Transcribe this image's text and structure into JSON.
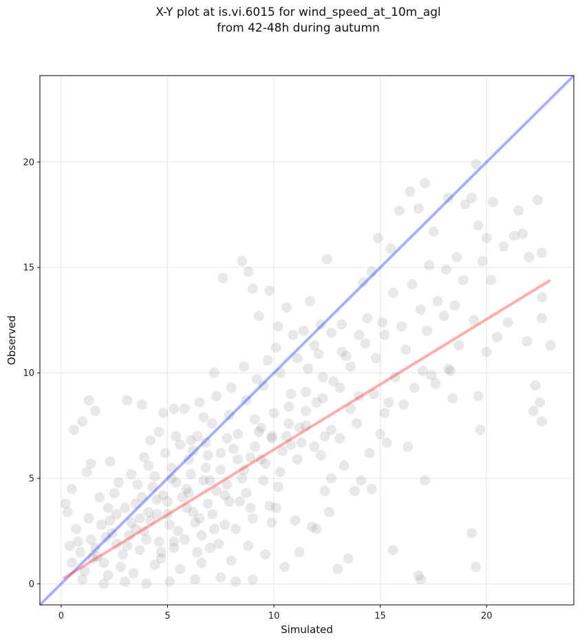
{
  "chart_data": {
    "type": "scatter",
    "title": "X-Y plot at is.vi.6015 for wind_speed_at_10m_agl",
    "subtitle": "from 42-48h during autumn",
    "xlabel": "Simulated",
    "ylabel": "Observed",
    "xlim": [
      -1,
      24.1
    ],
    "ylim": [
      -1,
      24.1
    ],
    "x_ticks": [
      0,
      5,
      10,
      15,
      20
    ],
    "y_ticks": [
      0,
      5,
      10,
      15,
      20
    ],
    "grid": true,
    "marker_color": "#808080",
    "identity_line": {
      "color": "#3333ff",
      "from": [
        -1,
        -1
      ],
      "to": [
        24.1,
        24.1
      ]
    },
    "fit_line": {
      "color": "#ff3333",
      "from": [
        0.1,
        0.25
      ],
      "to": [
        23,
        14.4
      ]
    },
    "points": [
      [
        0.2,
        3.8
      ],
      [
        0.3,
        3.4
      ],
      [
        0.5,
        4.5
      ],
      [
        0.6,
        7.3
      ],
      [
        1.0,
        7.7
      ],
      [
        1.3,
        8.7
      ],
      [
        1.6,
        8.2
      ],
      [
        1.2,
        5.3
      ],
      [
        1.4,
        5.7
      ],
      [
        2.3,
        5.8
      ],
      [
        3.1,
        8.7
      ],
      [
        3.8,
        8.5
      ],
      [
        4.2,
        6.8
      ],
      [
        4.8,
        8.1
      ],
      [
        5.3,
        8.3
      ],
      [
        5.8,
        8.3
      ],
      [
        6.5,
        8.6
      ],
      [
        7.2,
        10.0
      ],
      [
        7.6,
        14.5
      ],
      [
        8.5,
        15.3
      ],
      [
        8.8,
        14.8
      ],
      [
        9.0,
        14.0
      ],
      [
        9.3,
        12.7
      ],
      [
        9.8,
        13.9
      ],
      [
        10.2,
        12.2
      ],
      [
        10.6,
        13.1
      ],
      [
        11.7,
        13.4
      ],
      [
        12.2,
        12.3
      ],
      [
        12.5,
        15.4
      ],
      [
        13.2,
        12.3
      ],
      [
        14.0,
        11.8
      ],
      [
        14.2,
        14.3
      ],
      [
        14.6,
        14.8
      ],
      [
        14.9,
        16.4
      ],
      [
        15.5,
        15.9
      ],
      [
        15.9,
        17.7
      ],
      [
        16.4,
        18.6
      ],
      [
        16.8,
        17.8
      ],
      [
        17.1,
        19.0
      ],
      [
        17.5,
        16.7
      ],
      [
        18.2,
        18.3
      ],
      [
        18.6,
        15.5
      ],
      [
        19.0,
        18.0
      ],
      [
        19.3,
        18.3
      ],
      [
        19.5,
        19.9
      ],
      [
        19.6,
        17.0
      ],
      [
        20.0,
        16.4
      ],
      [
        20.3,
        18.1
      ],
      [
        20.8,
        16.0
      ],
      [
        21.3,
        16.5
      ],
      [
        21.5,
        17.7
      ],
      [
        21.7,
        16.6
      ],
      [
        22.0,
        15.5
      ],
      [
        22.4,
        18.2
      ],
      [
        22.6,
        15.7
      ],
      [
        22.6,
        13.6
      ],
      [
        23.0,
        11.3
      ],
      [
        22.6,
        12.6
      ],
      [
        22.3,
        9.4
      ],
      [
        22.5,
        8.6
      ],
      [
        22.6,
        7.7
      ],
      [
        22.2,
        8.2
      ],
      [
        19.3,
        2.4
      ],
      [
        19.5,
        0.8
      ],
      [
        16.8,
        0.4
      ],
      [
        16.9,
        0.2
      ],
      [
        15.6,
        1.6
      ],
      [
        17.1,
        4.9
      ],
      [
        19.7,
        7.3
      ],
      [
        19.6,
        8.9
      ],
      [
        20.0,
        11.0
      ],
      [
        20.5,
        11.7
      ],
      [
        21.0,
        12.4
      ],
      [
        21.9,
        11.5
      ],
      [
        18.4,
        8.8
      ],
      [
        18.2,
        10.2
      ],
      [
        17.0,
        10.1
      ],
      [
        15.7,
        9.8
      ],
      [
        15.2,
        8.1
      ],
      [
        14.7,
        9.0
      ],
      [
        13.6,
        8.3
      ],
      [
        13.1,
        6.9
      ],
      [
        12.7,
        5.0
      ],
      [
        12.4,
        4.4
      ],
      [
        12.2,
        6.1
      ],
      [
        11.5,
        7.5
      ],
      [
        10.8,
        6.6
      ],
      [
        10.2,
        4.6
      ],
      [
        9.9,
        2.9
      ],
      [
        11.2,
        1.5
      ],
      [
        13.0,
        0.7
      ],
      [
        13.5,
        1.2
      ],
      [
        12.0,
        2.6
      ],
      [
        10.5,
        0.8
      ],
      [
        9.0,
        0.2
      ],
      [
        8.2,
        0.1
      ],
      [
        7.5,
        0.3
      ],
      [
        6.3,
        0.2
      ],
      [
        5.1,
        0.1
      ],
      [
        4.0,
        0.0
      ],
      [
        3.0,
        0.1
      ],
      [
        2.0,
        0.0
      ],
      [
        1.0,
        0.2
      ],
      [
        0.5,
        1.0
      ],
      [
        0.8,
        2.0
      ],
      [
        1.5,
        1.2
      ],
      [
        2.1,
        2.2
      ],
      [
        2.6,
        3.3
      ],
      [
        3.1,
        1.8
      ],
      [
        3.5,
        3.8
      ],
      [
        3.9,
        2.5
      ],
      [
        4.3,
        4.6
      ],
      [
        4.7,
        1.2
      ],
      [
        5.0,
        3.3
      ],
      [
        5.4,
        4.8
      ],
      [
        5.8,
        2.1
      ],
      [
        6.1,
        5.2
      ],
      [
        6.5,
        3.1
      ],
      [
        6.9,
        6.1
      ],
      [
        7.3,
        4.4
      ],
      [
        7.7,
        2.8
      ],
      [
        8.1,
        6.4
      ],
      [
        8.5,
        5.0
      ],
      [
        8.9,
        3.6
      ],
      [
        9.3,
        7.2
      ],
      [
        9.6,
        5.7
      ],
      [
        10.0,
        8.1
      ],
      [
        10.4,
        6.3
      ],
      [
        10.8,
        9.0
      ],
      [
        11.2,
        7.4
      ],
      [
        11.6,
        10.2
      ],
      [
        12.0,
        8.6
      ],
      [
        12.4,
        7.0
      ],
      [
        12.8,
        9.6
      ],
      [
        13.2,
        11.0
      ],
      [
        13.6,
        10.3
      ],
      [
        14.0,
        8.9
      ],
      [
        14.4,
        12.6
      ],
      [
        14.8,
        10.7
      ],
      [
        15.2,
        11.8
      ],
      [
        15.6,
        13.8
      ],
      [
        16.0,
        12.2
      ],
      [
        16.5,
        14.2
      ],
      [
        16.9,
        13.0
      ],
      [
        17.3,
        15.1
      ],
      [
        17.7,
        13.4
      ],
      [
        18.1,
        14.9
      ],
      [
        18.5,
        13.2
      ],
      [
        18.9,
        14.4
      ],
      [
        19.4,
        12.5
      ],
      [
        19.8,
        15.3
      ],
      [
        20.2,
        14.4
      ],
      [
        1.8,
        4.1
      ],
      [
        2.2,
        3.6
      ],
      [
        2.7,
        4.8
      ],
      [
        3.3,
        5.2
      ],
      [
        3.7,
        3.1
      ],
      [
        4.1,
        5.6
      ],
      [
        4.5,
        4.0
      ],
      [
        4.9,
        6.2
      ],
      [
        5.2,
        5.0
      ],
      [
        5.6,
        6.6
      ],
      [
        6.0,
        4.3
      ],
      [
        6.4,
        7.0
      ],
      [
        6.8,
        5.5
      ],
      [
        7.1,
        7.6
      ],
      [
        7.5,
        6.2
      ],
      [
        7.9,
        8.0
      ],
      [
        8.3,
        7.1
      ],
      [
        8.7,
        8.7
      ],
      [
        9.1,
        7.8
      ],
      [
        9.5,
        9.4
      ],
      [
        9.9,
        7.0
      ],
      [
        10.3,
        10.0
      ],
      [
        10.7,
        8.4
      ],
      [
        11.1,
        10.7
      ],
      [
        11.5,
        9.1
      ],
      [
        11.9,
        11.3
      ],
      [
        12.3,
        9.8
      ],
      [
        12.7,
        11.9
      ],
      [
        1.1,
        0.6
      ],
      [
        1.6,
        1.7
      ],
      [
        2.0,
        1.0
      ],
      [
        2.4,
        2.4
      ],
      [
        2.9,
        1.4
      ],
      [
        3.3,
        2.9
      ],
      [
        3.7,
        1.6
      ],
      [
        4.1,
        3.4
      ],
      [
        4.6,
        2.0
      ],
      [
        5.0,
        3.9
      ],
      [
        5.5,
        2.5
      ],
      [
        5.9,
        4.5
      ],
      [
        6.3,
        2.9
      ],
      [
        6.7,
        4.9
      ],
      [
        7.1,
        3.3
      ],
      [
        7.5,
        5.4
      ],
      [
        7.9,
        3.9
      ],
      [
        8.3,
        5.9
      ],
      [
        8.7,
        4.3
      ],
      [
        9.1,
        6.5
      ],
      [
        9.5,
        4.9
      ],
      [
        9.9,
        6.9
      ],
      [
        10.3,
        5.3
      ],
      [
        10.7,
        7.6
      ],
      [
        11.1,
        5.9
      ],
      [
        11.5,
        8.2
      ],
      [
        11.9,
        6.5
      ],
      [
        12.3,
        8.8
      ],
      [
        12.7,
        7.3
      ],
      [
        13.1,
        9.3
      ],
      [
        0.4,
        1.8
      ],
      [
        0.7,
        2.6
      ],
      [
        1.3,
        3.1
      ],
      [
        1.9,
        2.8
      ],
      [
        2.5,
        4.3
      ],
      [
        3.0,
        3.6
      ],
      [
        3.6,
        4.7
      ],
      [
        4.2,
        3.0
      ],
      [
        4.8,
        4.2
      ],
      [
        5.3,
        2.0
      ],
      [
        5.9,
        3.6
      ],
      [
        6.4,
        1.5
      ],
      [
        6.9,
        3.8
      ],
      [
        7.4,
        1.9
      ],
      [
        7.8,
        4.7
      ],
      [
        8.2,
        2.6
      ],
      [
        8.6,
        5.4
      ],
      [
        9.0,
        3.1
      ],
      [
        9.4,
        5.9
      ],
      [
        9.8,
        3.7
      ],
      [
        2.2,
        0.4
      ],
      [
        2.8,
        0.8
      ],
      [
        3.4,
        0.5
      ],
      [
        4.4,
        0.9
      ],
      [
        5.6,
        0.7
      ],
      [
        6.6,
        1.0
      ],
      [
        7.0,
        1.7
      ],
      [
        8.0,
        1.1
      ],
      [
        8.8,
        1.8
      ],
      [
        9.6,
        1.4
      ],
      [
        3.9,
        6.0
      ],
      [
        4.6,
        7.2
      ],
      [
        5.4,
        7.0
      ],
      [
        6.2,
        6.3
      ],
      [
        6.7,
        7.9
      ],
      [
        7.3,
        8.9
      ],
      [
        8.0,
        9.3
      ],
      [
        8.6,
        10.3
      ],
      [
        9.2,
        9.7
      ],
      [
        9.7,
        10.6
      ],
      [
        10.1,
        11.2
      ],
      [
        10.9,
        11.8
      ],
      [
        11.4,
        12.0
      ],
      [
        12.1,
        10.9
      ],
      [
        13.4,
        10.8
      ],
      [
        14.3,
        11.4
      ],
      [
        15.1,
        12.4
      ],
      [
        16.2,
        11.1
      ],
      [
        17.2,
        12.0
      ],
      [
        18.0,
        12.7
      ],
      [
        13.9,
        7.6
      ],
      [
        14.5,
        6.2
      ],
      [
        15.0,
        7.1
      ],
      [
        15.4,
        8.6
      ],
      [
        16.1,
        8.5
      ],
      [
        16.6,
        9.3
      ],
      [
        17.6,
        9.5
      ],
      [
        18.3,
        10.1
      ],
      [
        13.3,
        5.6
      ],
      [
        14.1,
        4.9
      ],
      [
        14.6,
        4.5
      ],
      [
        13.8,
        4.4
      ],
      [
        12.6,
        3.4
      ],
      [
        11.8,
        2.7
      ],
      [
        11.0,
        3.0
      ],
      [
        10.1,
        3.6
      ],
      [
        15.3,
        6.7
      ],
      [
        16.3,
        6.5
      ],
      [
        17.4,
        9.9
      ],
      [
        18.7,
        11.3
      ],
      [
        6.0,
        5.9
      ],
      [
        6.2,
        3.4
      ],
      [
        5.7,
        4.1
      ],
      [
        5.1,
        2.8
      ],
      [
        4.5,
        3.3
      ],
      [
        4.0,
        2.1
      ],
      [
        3.5,
        2.6
      ],
      [
        7.0,
        4.9
      ],
      [
        7.7,
        4.2
      ],
      [
        8.4,
        3.9
      ],
      [
        6.6,
        2.3
      ],
      [
        7.2,
        2.6
      ],
      [
        5.3,
        1.7
      ],
      [
        4.7,
        1.5
      ],
      [
        6.8,
        6.7
      ],
      [
        7.8,
        6.9
      ],
      [
        8.9,
        6.0
      ],
      [
        9.4,
        7.4
      ],
      [
        10.6,
        7.0
      ],
      [
        11.3,
        6.7
      ],
      [
        2.6,
        1.9
      ],
      [
        3.2,
        2.3
      ],
      [
        1.7,
        1.3
      ],
      [
        2.3,
        3.0
      ],
      [
        1.4,
        2.1
      ],
      [
        0.9,
        1.5
      ],
      [
        3.8,
        4.1
      ],
      [
        4.4,
        5.1
      ],
      [
        5.2,
        5.5
      ],
      [
        6.1,
        6.8
      ]
    ]
  }
}
